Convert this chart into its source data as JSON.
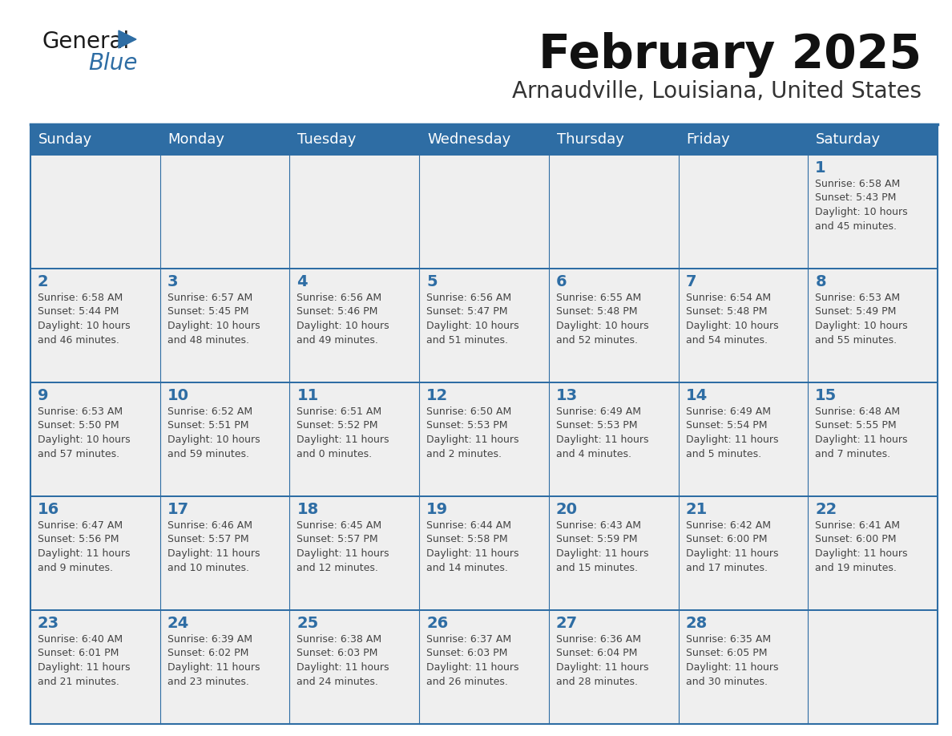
{
  "title": "February 2025",
  "subtitle": "Arnaudville, Louisiana, United States",
  "days_of_week": [
    "Sunday",
    "Monday",
    "Tuesday",
    "Wednesday",
    "Thursday",
    "Friday",
    "Saturday"
  ],
  "header_bg": "#2E6DA4",
  "header_text": "#FFFFFF",
  "cell_bg": "#EFEFEF",
  "grid_line_color": "#2E6DA4",
  "day_number_color": "#2E6DA4",
  "cell_text_color": "#444444",
  "title_color": "#111111",
  "subtitle_color": "#333333",
  "logo_general_color": "#1a1a1a",
  "logo_blue_color": "#2E6DA4",
  "weeks": [
    [
      {
        "day": null,
        "info": null
      },
      {
        "day": null,
        "info": null
      },
      {
        "day": null,
        "info": null
      },
      {
        "day": null,
        "info": null
      },
      {
        "day": null,
        "info": null
      },
      {
        "day": null,
        "info": null
      },
      {
        "day": 1,
        "info": "Sunrise: 6:58 AM\nSunset: 5:43 PM\nDaylight: 10 hours\nand 45 minutes."
      }
    ],
    [
      {
        "day": 2,
        "info": "Sunrise: 6:58 AM\nSunset: 5:44 PM\nDaylight: 10 hours\nand 46 minutes."
      },
      {
        "day": 3,
        "info": "Sunrise: 6:57 AM\nSunset: 5:45 PM\nDaylight: 10 hours\nand 48 minutes."
      },
      {
        "day": 4,
        "info": "Sunrise: 6:56 AM\nSunset: 5:46 PM\nDaylight: 10 hours\nand 49 minutes."
      },
      {
        "day": 5,
        "info": "Sunrise: 6:56 AM\nSunset: 5:47 PM\nDaylight: 10 hours\nand 51 minutes."
      },
      {
        "day": 6,
        "info": "Sunrise: 6:55 AM\nSunset: 5:48 PM\nDaylight: 10 hours\nand 52 minutes."
      },
      {
        "day": 7,
        "info": "Sunrise: 6:54 AM\nSunset: 5:48 PM\nDaylight: 10 hours\nand 54 minutes."
      },
      {
        "day": 8,
        "info": "Sunrise: 6:53 AM\nSunset: 5:49 PM\nDaylight: 10 hours\nand 55 minutes."
      }
    ],
    [
      {
        "day": 9,
        "info": "Sunrise: 6:53 AM\nSunset: 5:50 PM\nDaylight: 10 hours\nand 57 minutes."
      },
      {
        "day": 10,
        "info": "Sunrise: 6:52 AM\nSunset: 5:51 PM\nDaylight: 10 hours\nand 59 minutes."
      },
      {
        "day": 11,
        "info": "Sunrise: 6:51 AM\nSunset: 5:52 PM\nDaylight: 11 hours\nand 0 minutes."
      },
      {
        "day": 12,
        "info": "Sunrise: 6:50 AM\nSunset: 5:53 PM\nDaylight: 11 hours\nand 2 minutes."
      },
      {
        "day": 13,
        "info": "Sunrise: 6:49 AM\nSunset: 5:53 PM\nDaylight: 11 hours\nand 4 minutes."
      },
      {
        "day": 14,
        "info": "Sunrise: 6:49 AM\nSunset: 5:54 PM\nDaylight: 11 hours\nand 5 minutes."
      },
      {
        "day": 15,
        "info": "Sunrise: 6:48 AM\nSunset: 5:55 PM\nDaylight: 11 hours\nand 7 minutes."
      }
    ],
    [
      {
        "day": 16,
        "info": "Sunrise: 6:47 AM\nSunset: 5:56 PM\nDaylight: 11 hours\nand 9 minutes."
      },
      {
        "day": 17,
        "info": "Sunrise: 6:46 AM\nSunset: 5:57 PM\nDaylight: 11 hours\nand 10 minutes."
      },
      {
        "day": 18,
        "info": "Sunrise: 6:45 AM\nSunset: 5:57 PM\nDaylight: 11 hours\nand 12 minutes."
      },
      {
        "day": 19,
        "info": "Sunrise: 6:44 AM\nSunset: 5:58 PM\nDaylight: 11 hours\nand 14 minutes."
      },
      {
        "day": 20,
        "info": "Sunrise: 6:43 AM\nSunset: 5:59 PM\nDaylight: 11 hours\nand 15 minutes."
      },
      {
        "day": 21,
        "info": "Sunrise: 6:42 AM\nSunset: 6:00 PM\nDaylight: 11 hours\nand 17 minutes."
      },
      {
        "day": 22,
        "info": "Sunrise: 6:41 AM\nSunset: 6:00 PM\nDaylight: 11 hours\nand 19 minutes."
      }
    ],
    [
      {
        "day": 23,
        "info": "Sunrise: 6:40 AM\nSunset: 6:01 PM\nDaylight: 11 hours\nand 21 minutes."
      },
      {
        "day": 24,
        "info": "Sunrise: 6:39 AM\nSunset: 6:02 PM\nDaylight: 11 hours\nand 23 minutes."
      },
      {
        "day": 25,
        "info": "Sunrise: 6:38 AM\nSunset: 6:03 PM\nDaylight: 11 hours\nand 24 minutes."
      },
      {
        "day": 26,
        "info": "Sunrise: 6:37 AM\nSunset: 6:03 PM\nDaylight: 11 hours\nand 26 minutes."
      },
      {
        "day": 27,
        "info": "Sunrise: 6:36 AM\nSunset: 6:04 PM\nDaylight: 11 hours\nand 28 minutes."
      },
      {
        "day": 28,
        "info": "Sunrise: 6:35 AM\nSunset: 6:05 PM\nDaylight: 11 hours\nand 30 minutes."
      },
      {
        "day": null,
        "info": null
      }
    ]
  ]
}
